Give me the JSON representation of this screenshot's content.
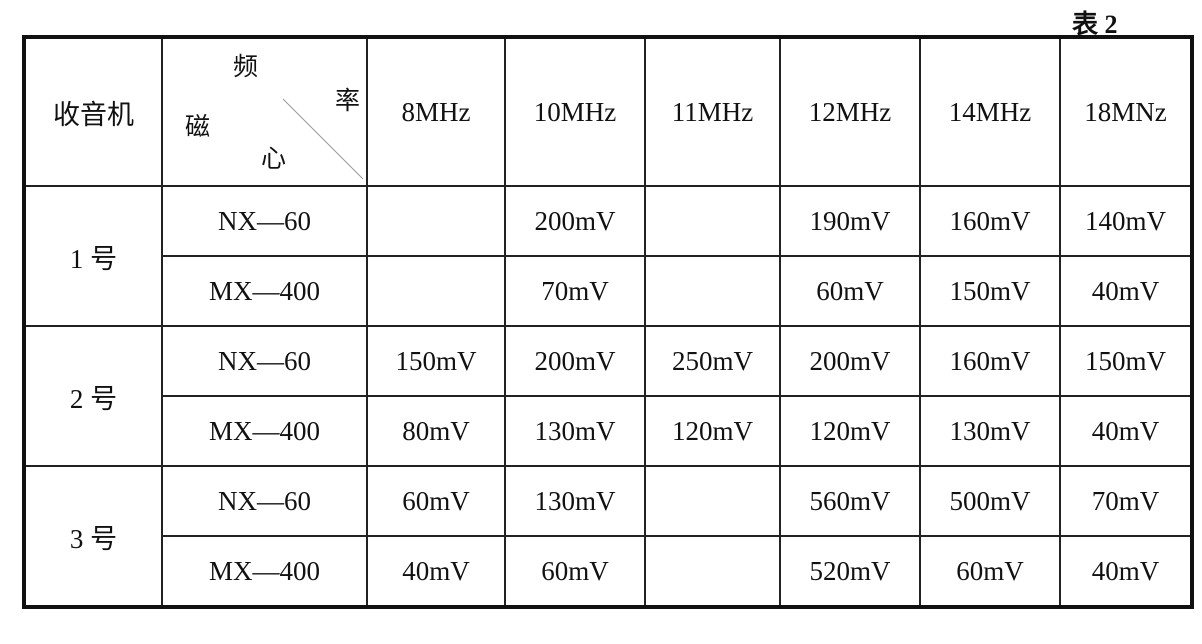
{
  "caption": "表 2",
  "table": {
    "header": {
      "radio": "收音机",
      "corner": {
        "top": "频",
        "right": "率",
        "left": "磁",
        "bottom": "心"
      },
      "frequencies": [
        "8MHz",
        "10MHz",
        "11MHz",
        "12MHz",
        "14MHz",
        "18MNz"
      ]
    },
    "groups": [
      {
        "radio": "1 号",
        "rows": [
          {
            "core": "NX—60",
            "values": [
              null,
              "200mV",
              null,
              "190mV",
              "160mV",
              "140mV"
            ]
          },
          {
            "core": "MX—400",
            "values": [
              null,
              "70mV",
              null,
              "60mV",
              "150mV",
              "40mV"
            ]
          }
        ]
      },
      {
        "radio": "2 号",
        "rows": [
          {
            "core": "NX—60",
            "values": [
              "150mV",
              "200mV",
              "250mV",
              "200mV",
              "160mV",
              "150mV"
            ]
          },
          {
            "core": "MX—400",
            "values": [
              "80mV",
              "130mV",
              "120mV",
              "120mV",
              "130mV",
              "40mV"
            ]
          }
        ]
      },
      {
        "radio": "3 号",
        "rows": [
          {
            "core": "NX—60",
            "values": [
              "60mV",
              "130mV",
              null,
              "560mV",
              "500mV",
              "70mV"
            ]
          },
          {
            "core": "MX—400",
            "values": [
              "40mV",
              "60mV",
              null,
              "520mV",
              "60mV",
              "40mV"
            ]
          }
        ]
      }
    ]
  }
}
